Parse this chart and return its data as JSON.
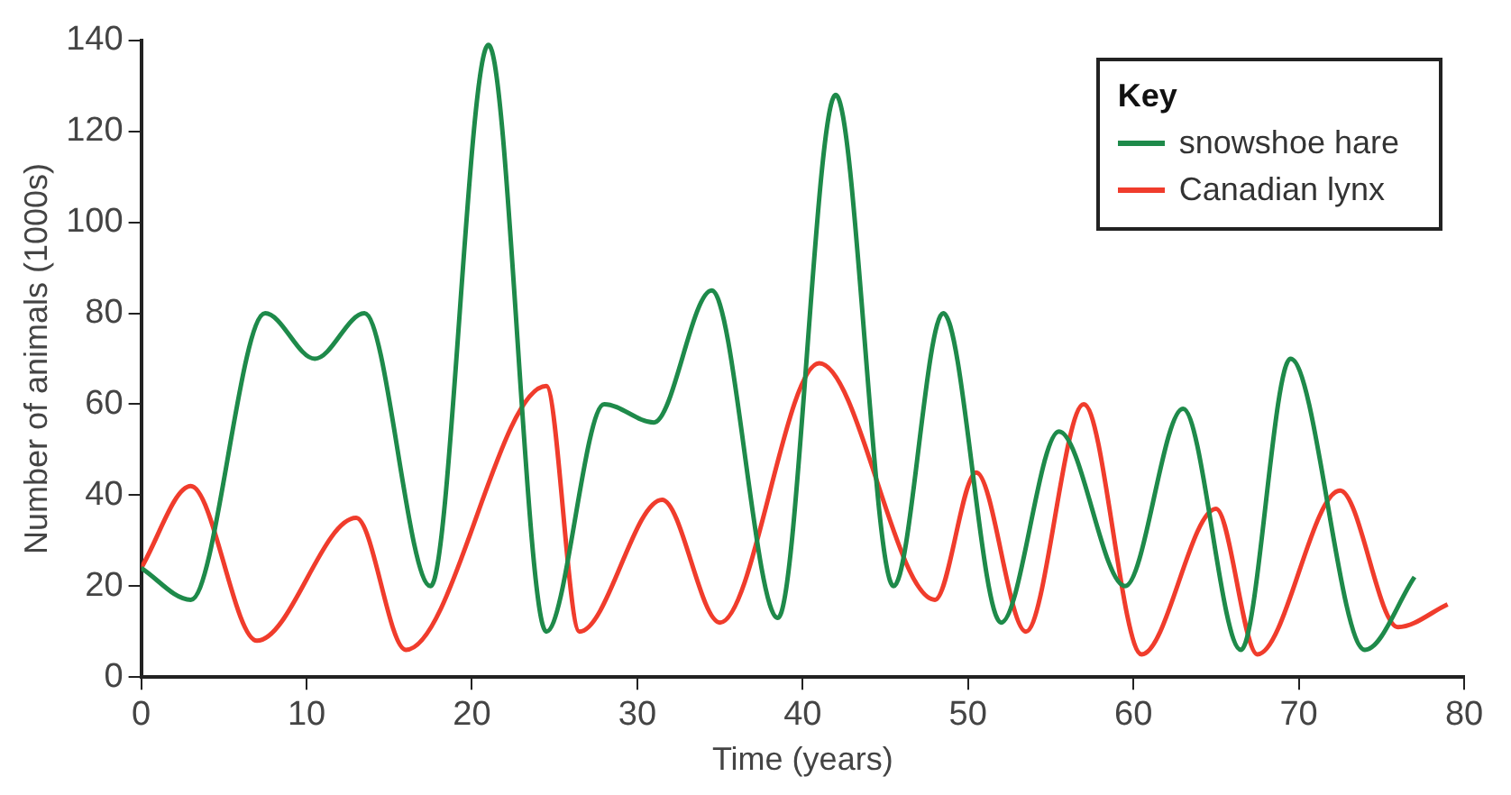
{
  "chart_data": {
    "type": "line",
    "xlabel": "Time (years)",
    "ylabel": "Number of animals (1000s)",
    "legend_title": "Key",
    "legend": "top right",
    "grid": false,
    "marker": "none",
    "line_style": "solid",
    "xlim": [
      0,
      80
    ],
    "xticks": [
      0,
      10,
      20,
      30,
      40,
      50,
      60,
      70,
      80
    ],
    "ylim": [
      0,
      140
    ],
    "yticks": [
      0,
      20,
      40,
      60,
      80,
      100,
      120,
      140
    ],
    "series": [
      {
        "name": "snowshoe hare",
        "color": "#1e8a4a",
        "x": [
          0,
          3,
          7.5,
          10.5,
          13.5,
          17.5,
          21,
          24.5,
          28,
          31,
          34.5,
          38.5,
          42,
          45.5,
          48.5,
          52,
          55.5,
          59.5,
          63,
          66.5,
          69.5,
          74,
          77
        ],
        "values": [
          24,
          17,
          80,
          70,
          80,
          20,
          139,
          10,
          60,
          56,
          85,
          13,
          128,
          20,
          80,
          12,
          54,
          20,
          59,
          6,
          70,
          6,
          22
        ]
      },
      {
        "name": "Canadian lynx",
        "color": "#f03c2c",
        "x": [
          0,
          3,
          7,
          13,
          16,
          24.5,
          26.5,
          31.5,
          35,
          41,
          48,
          50.5,
          53.5,
          57,
          60.5,
          65,
          67.5,
          72.5,
          76,
          79
        ],
        "values": [
          24,
          42,
          8,
          35,
          6,
          64,
          10,
          39,
          12,
          69,
          17,
          45,
          10,
          60,
          5,
          37,
          5,
          41,
          11,
          16
        ]
      }
    ]
  }
}
